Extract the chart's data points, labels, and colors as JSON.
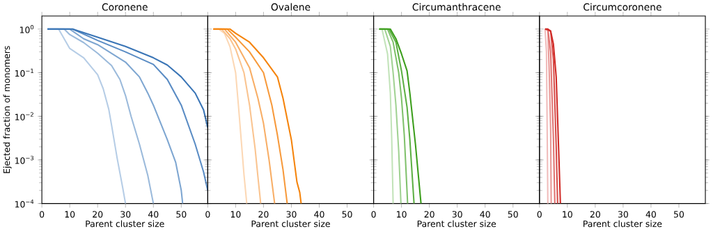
{
  "chart_data": [
    {
      "type": "line",
      "title": "Coronene",
      "xlabel": "Parent cluster size",
      "ylabel": "Ejected fraction of monomers",
      "log": true,
      "xlim": [
        0,
        59.5
      ],
      "xticks": [
        0,
        10,
        20,
        30,
        40,
        50
      ],
      "ylim": [
        0.0001,
        2
      ],
      "yticks": [
        {
          "value": 0.0001,
          "label": "10$^{−4}$"
        },
        {
          "value": 0.001,
          "label": "10$^{−3}$"
        },
        {
          "value": 0.01,
          "label": "10$^{−2}$"
        },
        {
          "value": 0.1,
          "label": "10$^{−1}$"
        },
        {
          "value": 1,
          "label": "10$^{0}$"
        }
      ],
      "series": [
        {
          "color": "#b6cde6",
          "x": [
            2,
            6,
            10,
            15,
            20,
            22,
            24,
            25,
            27,
            29,
            30
          ],
          "values": [
            1,
            1,
            0.36,
            0.22,
            0.09,
            0.043,
            0.0145,
            0.0063,
            0.0011,
            0.00023,
            0.0001
          ]
        },
        {
          "color": "#9bbadb",
          "x": [
            2,
            8,
            10,
            15,
            20,
            25,
            28,
            30,
            32,
            35,
            38,
            40
          ],
          "values": [
            1,
            1,
            0.75,
            0.49,
            0.28,
            0.146,
            0.07,
            0.03,
            0.01,
            0.0023,
            0.00044,
            0.0001
          ]
        },
        {
          "color": "#7ea6d1",
          "x": [
            2,
            10,
            15,
            20,
            30,
            35,
            38,
            40,
            45,
            48,
            50,
            50.5
          ],
          "values": [
            1,
            1,
            0.6,
            0.44,
            0.175,
            0.08,
            0.034,
            0.018,
            0.0029,
            0.00088,
            0.0002,
            0.0001
          ]
        },
        {
          "color": "#5a8cc4",
          "x": [
            2,
            11,
            20,
            30,
            40,
            45,
            50,
            55,
            58,
            59.5
          ],
          "values": [
            1,
            1,
            0.55,
            0.3,
            0.155,
            0.07,
            0.018,
            0.0023,
            0.00053,
            0.0002
          ]
        },
        {
          "color": "#3a75b6",
          "x": [
            2,
            11,
            20,
            30,
            40,
            45,
            50,
            55,
            58,
            59.5
          ],
          "values": [
            1,
            1,
            0.65,
            0.4,
            0.22,
            0.15,
            0.08,
            0.034,
            0.014,
            0.0055
          ]
        }
      ]
    },
    {
      "type": "line",
      "title": "Ovalene",
      "xlabel": "Parent cluster size",
      "log": true,
      "tick_labels": "x",
      "xlim": [
        0,
        59.5
      ],
      "xticks": [
        0,
        10,
        20,
        30,
        40,
        50
      ],
      "ylim": [
        0.0001,
        2
      ],
      "yticks": [
        {
          "value": 0.0001,
          "label": null
        },
        {
          "value": 0.001,
          "label": null
        },
        {
          "value": 0.01,
          "label": null
        },
        {
          "value": 0.1,
          "label": null
        },
        {
          "value": 1,
          "label": null
        }
      ],
      "series": [
        {
          "color": "#fcd8b5",
          "x": [
            2,
            4,
            6,
            8,
            10,
            11,
            12,
            13,
            14
          ],
          "values": [
            1,
            1,
            0.8,
            0.39,
            0.1,
            0.018,
            0.0029,
            0.00046,
            0.0001
          ]
        },
        {
          "color": "#fac490",
          "x": [
            2,
            5,
            8,
            10,
            13,
            15,
            17,
            18,
            19
          ],
          "values": [
            1,
            1,
            0.6,
            0.35,
            0.1,
            0.018,
            0.0018,
            0.00041,
            0.0001
          ]
        },
        {
          "color": "#f8ae66",
          "x": [
            2,
            6,
            10,
            15,
            18,
            20,
            22,
            24
          ],
          "values": [
            1,
            1,
            0.5,
            0.13,
            0.026,
            0.0069,
            0.001,
            0.0001
          ]
        },
        {
          "color": "#f79a3c",
          "x": [
            2,
            7,
            10,
            15,
            20,
            23,
            25,
            27,
            28.5
          ],
          "values": [
            1,
            1,
            0.65,
            0.3,
            0.1,
            0.018,
            0.0037,
            0.0006,
            0.0001
          ]
        },
        {
          "color": "#f5840c",
          "x": [
            2,
            8,
            10,
            15,
            20,
            25,
            27,
            30,
            32,
            33,
            33.5
          ],
          "values": [
            1,
            1,
            0.8,
            0.5,
            0.22,
            0.08,
            0.026,
            0.0029,
            0.00031,
            0.00018,
            0.0001
          ]
        }
      ]
    },
    {
      "type": "line",
      "title": "Circumanthracene",
      "xlabel": "Parent cluster size",
      "log": true,
      "tick_labels": "x",
      "xlim": [
        0,
        59.5
      ],
      "xticks": [
        0,
        10,
        20,
        30,
        40,
        50
      ],
      "ylim": [
        0.0001,
        2
      ],
      "yticks": [
        {
          "value": 0.0001,
          "label": null
        },
        {
          "value": 0.001,
          "label": null
        },
        {
          "value": 0.01,
          "label": null
        },
        {
          "value": 0.1,
          "label": null
        },
        {
          "value": 1,
          "label": null
        }
      ],
      "series": [
        {
          "color": "#c2e3b9",
          "x": [
            2,
            3,
            5,
            6,
            6.5,
            7
          ],
          "values": [
            1,
            1,
            0.27,
            0.034,
            0.003,
            0.0001
          ]
        },
        {
          "color": "#a1d293",
          "x": [
            2,
            4,
            6,
            7,
            8,
            9,
            9.8
          ],
          "values": [
            1,
            1,
            0.4,
            0.1,
            0.018,
            0.0016,
            0.0001
          ]
        },
        {
          "color": "#80c16c",
          "x": [
            2,
            5,
            7,
            9,
            10,
            11,
            12.2
          ],
          "values": [
            1,
            1,
            0.5,
            0.1,
            0.026,
            0.0037,
            0.0001
          ]
        },
        {
          "color": "#5eb045",
          "x": [
            2,
            5.5,
            8,
            10,
            12,
            13,
            14.5
          ],
          "values": [
            1,
            1,
            0.5,
            0.11,
            0.016,
            0.0029,
            0.0001
          ]
        },
        {
          "color": "#3c9e1c",
          "x": [
            2,
            6,
            8,
            10,
            12,
            13,
            15,
            17
          ],
          "values": [
            1,
            1,
            0.6,
            0.27,
            0.11,
            0.034,
            0.0023,
            0.0001
          ]
        }
      ]
    },
    {
      "type": "line",
      "title": "Circumcoronene",
      "xlabel": "Parent cluster size",
      "log": true,
      "tick_labels": "x",
      "xlim": [
        0,
        59.5
      ],
      "xticks": [
        0,
        10,
        20,
        30,
        40,
        50
      ],
      "ylim": [
        0.0001,
        2
      ],
      "yticks": [
        {
          "value": 0.0001,
          "label": null
        },
        {
          "value": 0.001,
          "label": null
        },
        {
          "value": 0.01,
          "label": null
        },
        {
          "value": 0.1,
          "label": null
        },
        {
          "value": 1,
          "label": null
        }
      ],
      "series": [
        {
          "color": "#f0bcbb",
          "x": [
            2,
            2.5,
            3
          ],
          "values": [
            1,
            0.3,
            0.0001
          ]
        },
        {
          "color": "#e89896",
          "x": [
            2,
            3,
            3.5,
            4,
            4.2
          ],
          "values": [
            1,
            1,
            0.1,
            0.005,
            0.0001
          ]
        },
        {
          "color": "#e07371",
          "x": [
            2,
            3,
            4,
            5,
            5.5
          ],
          "values": [
            1,
            1,
            0.3,
            0.003,
            0.0001
          ]
        },
        {
          "color": "#d84e4b",
          "x": [
            2,
            4,
            5,
            6,
            6.5
          ],
          "values": [
            1,
            0.9,
            0.2,
            0.002,
            0.0001
          ]
        },
        {
          "color": "#d02a26",
          "x": [
            2,
            3,
            4,
            5,
            6,
            7,
            7.5
          ],
          "values": [
            1,
            1,
            0.9,
            0.45,
            0.08,
            0.001,
            0.0001
          ]
        }
      ]
    }
  ]
}
